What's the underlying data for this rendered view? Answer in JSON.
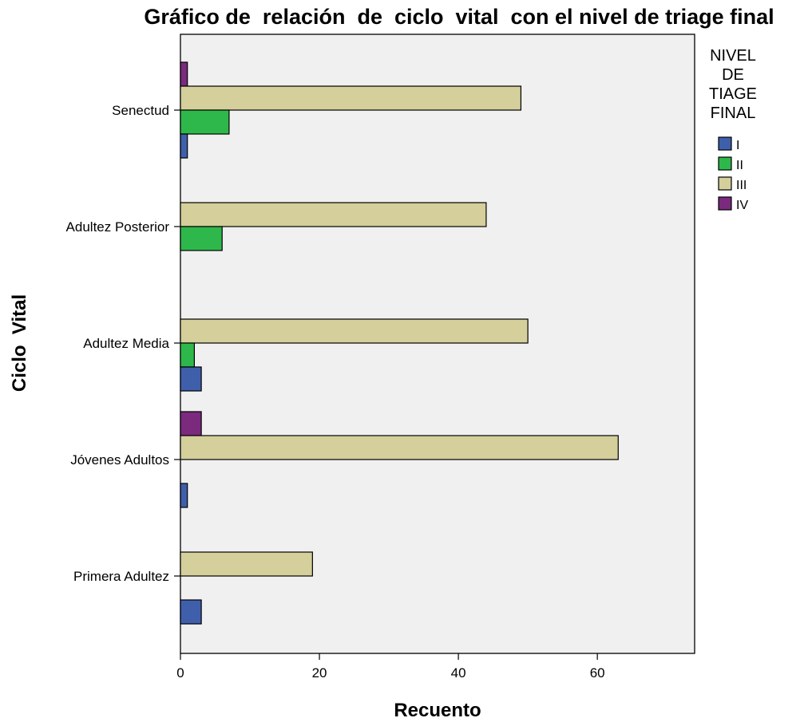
{
  "chart_data": {
    "type": "bar",
    "orientation": "horizontal",
    "title": "Gráfico de  relación  de  ciclo  vital  con el nivel de triage final",
    "xlabel": "Recuento",
    "ylabel": "Ciclo  Vital",
    "categories": [
      "Senectud",
      "Adultez Posterior",
      "Adultez Media",
      "Jóvenes Adultos",
      "Primera Adultez"
    ],
    "series": [
      {
        "name": "I",
        "color": "#3f5fab",
        "values": [
          1,
          0,
          3,
          1,
          3
        ]
      },
      {
        "name": "II",
        "color": "#2eb84b",
        "values": [
          7,
          6,
          2,
          0,
          0
        ]
      },
      {
        "name": "III",
        "color": "#d4cf9b",
        "values": [
          49,
          44,
          50,
          63,
          19
        ]
      },
      {
        "name": "IV",
        "color": "#7b2a7e",
        "values": [
          1,
          0,
          0,
          3,
          0
        ]
      }
    ],
    "xlim": [
      0,
      74
    ],
    "xticks": [
      0,
      20,
      40,
      60
    ],
    "grid": false,
    "plot_background": "#f0f0f0",
    "legend": {
      "title_lines": [
        "NIVEL",
        "DE",
        "TIAGE",
        "FINAL"
      ],
      "position": "right"
    }
  }
}
